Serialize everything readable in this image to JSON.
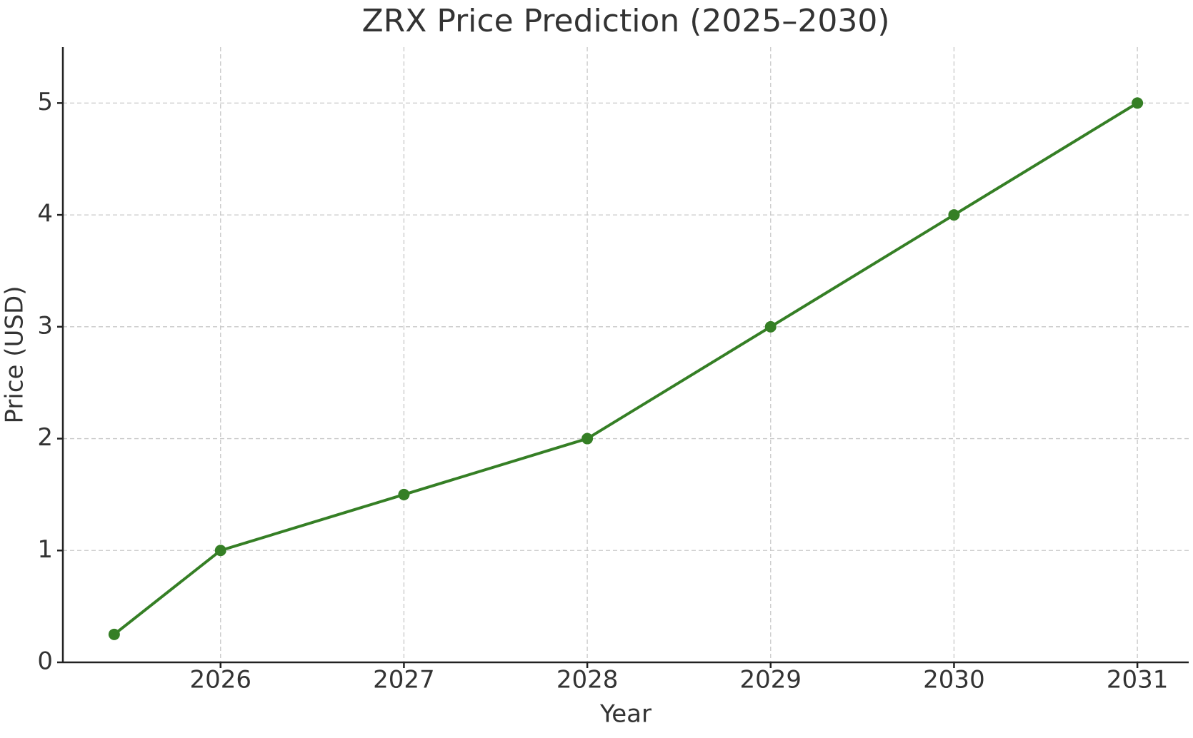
{
  "chart_data": {
    "type": "line",
    "title": "ZRX Price Prediction (2025–2030)",
    "x_label": "Year",
    "y_label": "Price (USD)",
    "x": [
      2025.42,
      2026,
      2027,
      2028,
      2029,
      2030,
      2031
    ],
    "series": [
      {
        "name": "ZRX",
        "color": "#357f25",
        "values": [
          0.25,
          1,
          1.5,
          2,
          3,
          4,
          5
        ]
      }
    ],
    "xlim": [
      2025.14,
      2031.28
    ],
    "xticks": [
      2026,
      2027,
      2028,
      2029,
      2030,
      2031
    ],
    "ylim": [
      0,
      5.5
    ],
    "yticks": [
      0,
      1,
      2,
      3,
      4,
      5
    ],
    "grid": true
  }
}
